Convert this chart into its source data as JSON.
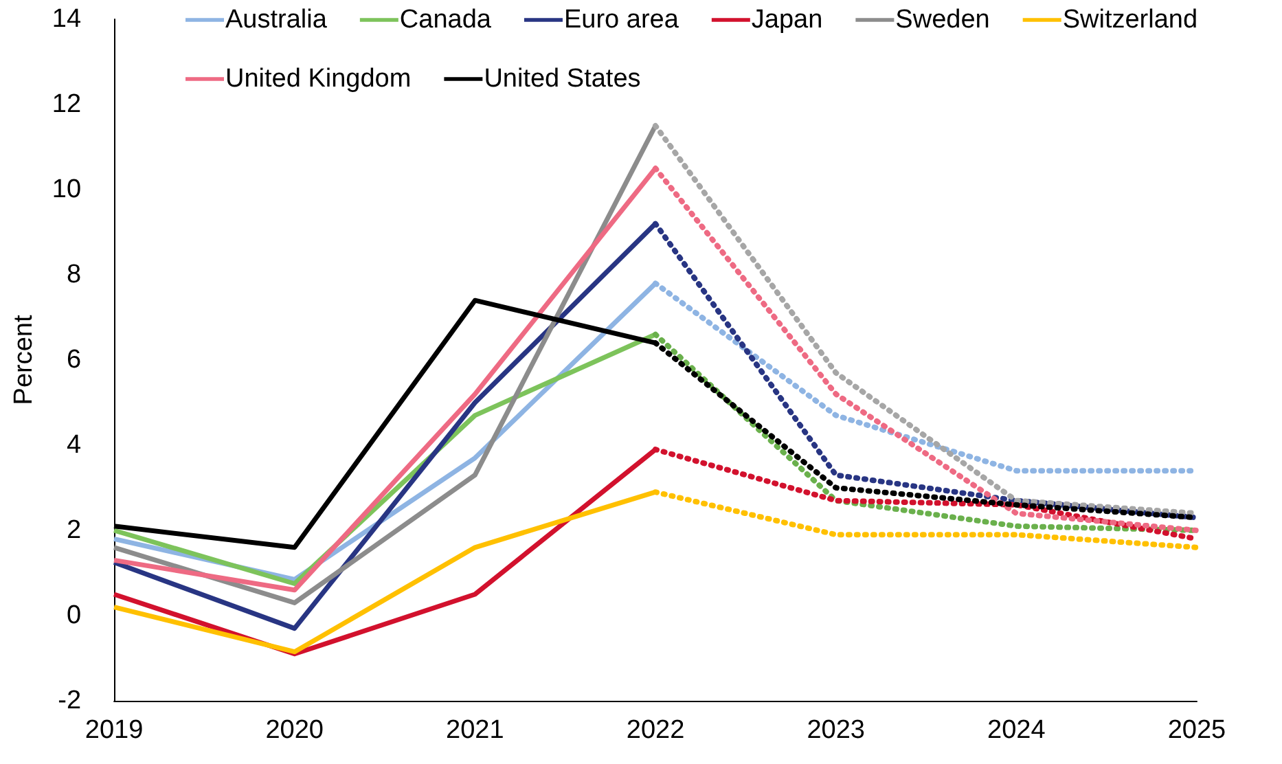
{
  "chart_data": {
    "type": "line",
    "ylabel": "Percent",
    "categories": [
      "2019",
      "2020",
      "2021",
      "2022",
      "2023",
      "2024",
      "2025"
    ],
    "ylim": [
      -2,
      14
    ],
    "yticks": [
      -2,
      0,
      2,
      4,
      6,
      8,
      10,
      12,
      14
    ],
    "grid": false,
    "legend": "top",
    "marker": "none",
    "line_style": "solid",
    "series": [
      {
        "name": "Australia",
        "color": "#8eb4e3",
        "values": [
          1.8,
          0.85,
          3.7,
          7.8,
          null,
          null,
          null
        ]
      },
      {
        "name": "Canada",
        "color": "#7dc35b",
        "values": [
          2.0,
          0.75,
          4.7,
          6.6,
          null,
          null,
          null
        ]
      },
      {
        "name": "Euro area",
        "color": "#283583",
        "values": [
          1.25,
          -0.3,
          5.0,
          9.2,
          null,
          null,
          null
        ]
      },
      {
        "name": "Japan",
        "color": "#d2112d",
        "values": [
          0.5,
          -0.9,
          0.5,
          3.9,
          null,
          null,
          null
        ]
      },
      {
        "name": "Sweden",
        "color": "#8c8c8c",
        "values": [
          1.6,
          0.3,
          3.3,
          11.5,
          null,
          null,
          null
        ]
      },
      {
        "name": "Switzerland",
        "color": "#ffc000",
        "values": [
          0.2,
          -0.85,
          1.6,
          2.9,
          null,
          null,
          null
        ]
      },
      {
        "name": "United Kingdom",
        "color": "#ee6a83",
        "values": [
          1.3,
          0.6,
          5.2,
          10.5,
          null,
          null,
          null
        ]
      },
      {
        "name": "United States",
        "color": "#000000",
        "values": [
          2.1,
          1.6,
          7.4,
          6.4,
          null,
          null,
          null
        ]
      },
      {
        "color": "#8eb4e3",
        "line_style": "dotted",
        "values": [
          null,
          null,
          null,
          7.8,
          4.7,
          3.4,
          3.4
        ]
      },
      {
        "color": "#6ab04c",
        "line_style": "dotted",
        "values": [
          null,
          null,
          null,
          6.6,
          2.7,
          2.1,
          2.0
        ]
      },
      {
        "color": "#283583",
        "line_style": "dotted",
        "values": [
          null,
          null,
          null,
          9.2,
          3.3,
          2.7,
          2.3
        ]
      },
      {
        "color": "#d2112d",
        "line_style": "dotted",
        "values": [
          null,
          null,
          null,
          3.9,
          2.7,
          2.6,
          1.8
        ]
      },
      {
        "color": "#a6a6a6",
        "line_style": "dotted",
        "values": [
          null,
          null,
          null,
          11.5,
          5.7,
          2.7,
          2.4
        ]
      },
      {
        "color": "#ffc000",
        "line_style": "dotted",
        "values": [
          null,
          null,
          null,
          2.9,
          1.9,
          1.9,
          1.6
        ]
      },
      {
        "color": "#ee6a83",
        "line_style": "dotted",
        "values": [
          null,
          null,
          null,
          10.5,
          5.2,
          2.4,
          2.0
        ]
      },
      {
        "color": "#000000",
        "line_style": "dotted",
        "values": [
          null,
          null,
          null,
          6.4,
          3.0,
          2.6,
          2.3
        ]
      }
    ]
  }
}
